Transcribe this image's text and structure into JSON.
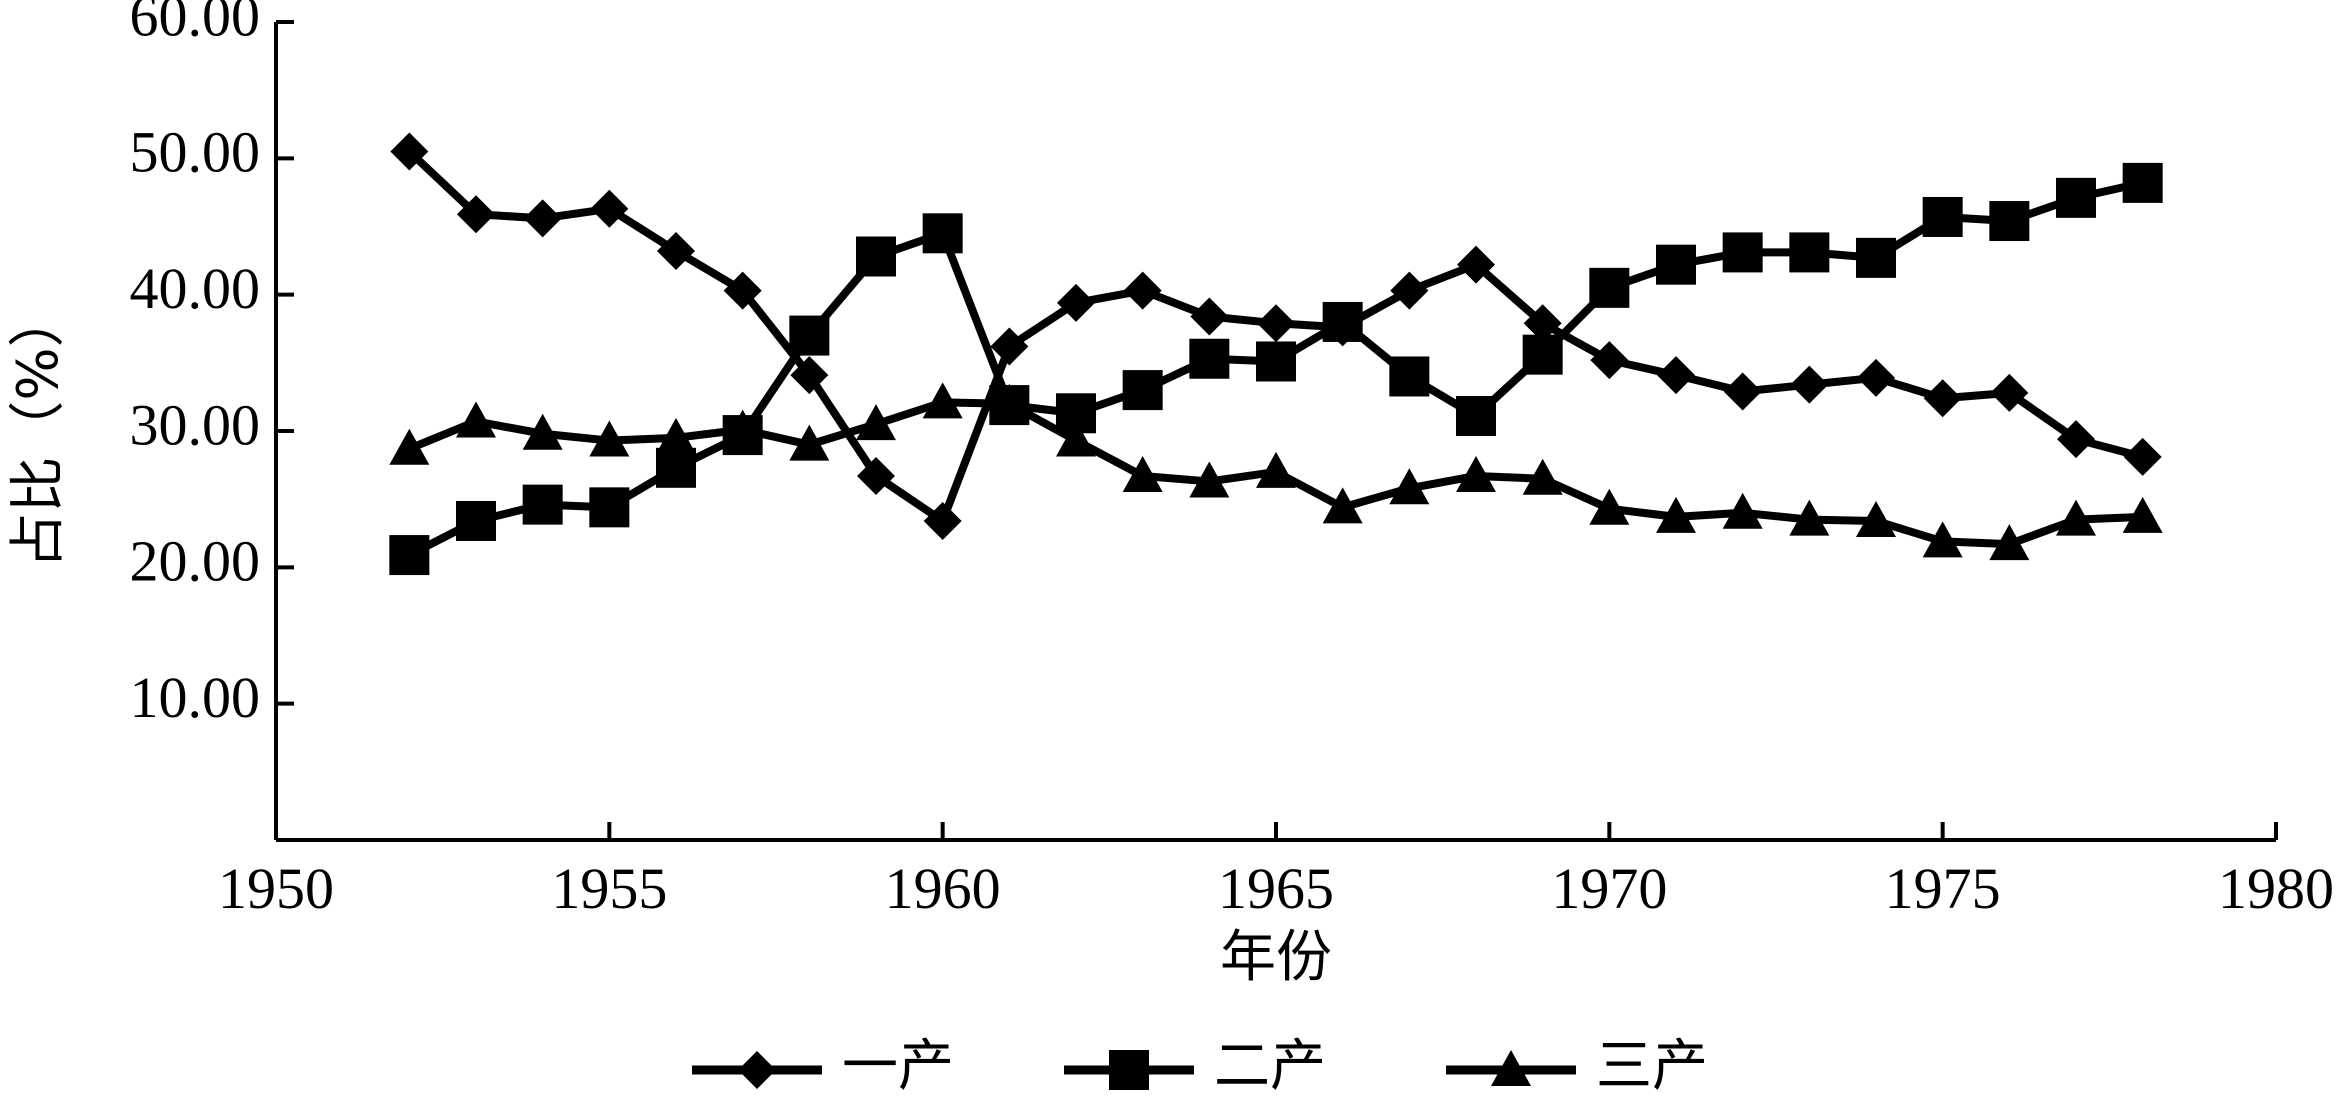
{
  "chart_data": {
    "type": "line",
    "title": "",
    "xlabel": "年份",
    "ylabel": "占比（%）",
    "xlim": [
      1950,
      1980
    ],
    "ylim": [
      0,
      60
    ],
    "x_ticks": [
      1950,
      1955,
      1960,
      1965,
      1970,
      1975,
      1980
    ],
    "y_ticks": [
      10,
      20,
      30,
      40,
      50,
      60
    ],
    "y_tick_labels": [
      "10.00",
      "20.00",
      "30.00",
      "40.00",
      "50.00",
      "60.00"
    ],
    "grid": false,
    "legend_position": "bottom",
    "line_color": "#000000",
    "x": [
      1952,
      1953,
      1954,
      1955,
      1956,
      1957,
      1958,
      1959,
      1960,
      1961,
      1962,
      1963,
      1964,
      1965,
      1966,
      1967,
      1968,
      1969,
      1970,
      1971,
      1972,
      1973,
      1974,
      1975,
      1976,
      1977,
      1978
    ],
    "series": [
      {
        "name": "一产",
        "marker": "diamond",
        "values": [
          50.5,
          45.9,
          45.6,
          46.3,
          43.2,
          40.3,
          34.1,
          26.7,
          23.4,
          36.2,
          39.4,
          40.3,
          38.4,
          37.9,
          37.6,
          40.3,
          42.2,
          37.9,
          35.2,
          34.1,
          32.9,
          33.4,
          33.9,
          32.4,
          32.8,
          29.4,
          28.1
        ]
      },
      {
        "name": "二产",
        "marker": "square",
        "values": [
          20.9,
          23.4,
          24.6,
          24.4,
          27.3,
          29.7,
          37.0,
          42.8,
          44.5,
          31.9,
          31.3,
          33.0,
          35.3,
          35.1,
          38.0,
          34.0,
          31.1,
          35.6,
          40.5,
          42.2,
          43.1,
          43.1,
          42.7,
          45.7,
          45.4,
          47.1,
          48.2
        ]
      },
      {
        "name": "三产",
        "marker": "triangle",
        "values": [
          28.7,
          30.7,
          29.8,
          29.3,
          29.5,
          30.1,
          29.0,
          30.5,
          32.1,
          32.0,
          29.3,
          26.7,
          26.3,
          27.0,
          24.4,
          25.8,
          26.7,
          26.5,
          24.3,
          23.7,
          24.0,
          23.5,
          23.4,
          21.9,
          21.7,
          23.5,
          23.7
        ]
      }
    ]
  }
}
